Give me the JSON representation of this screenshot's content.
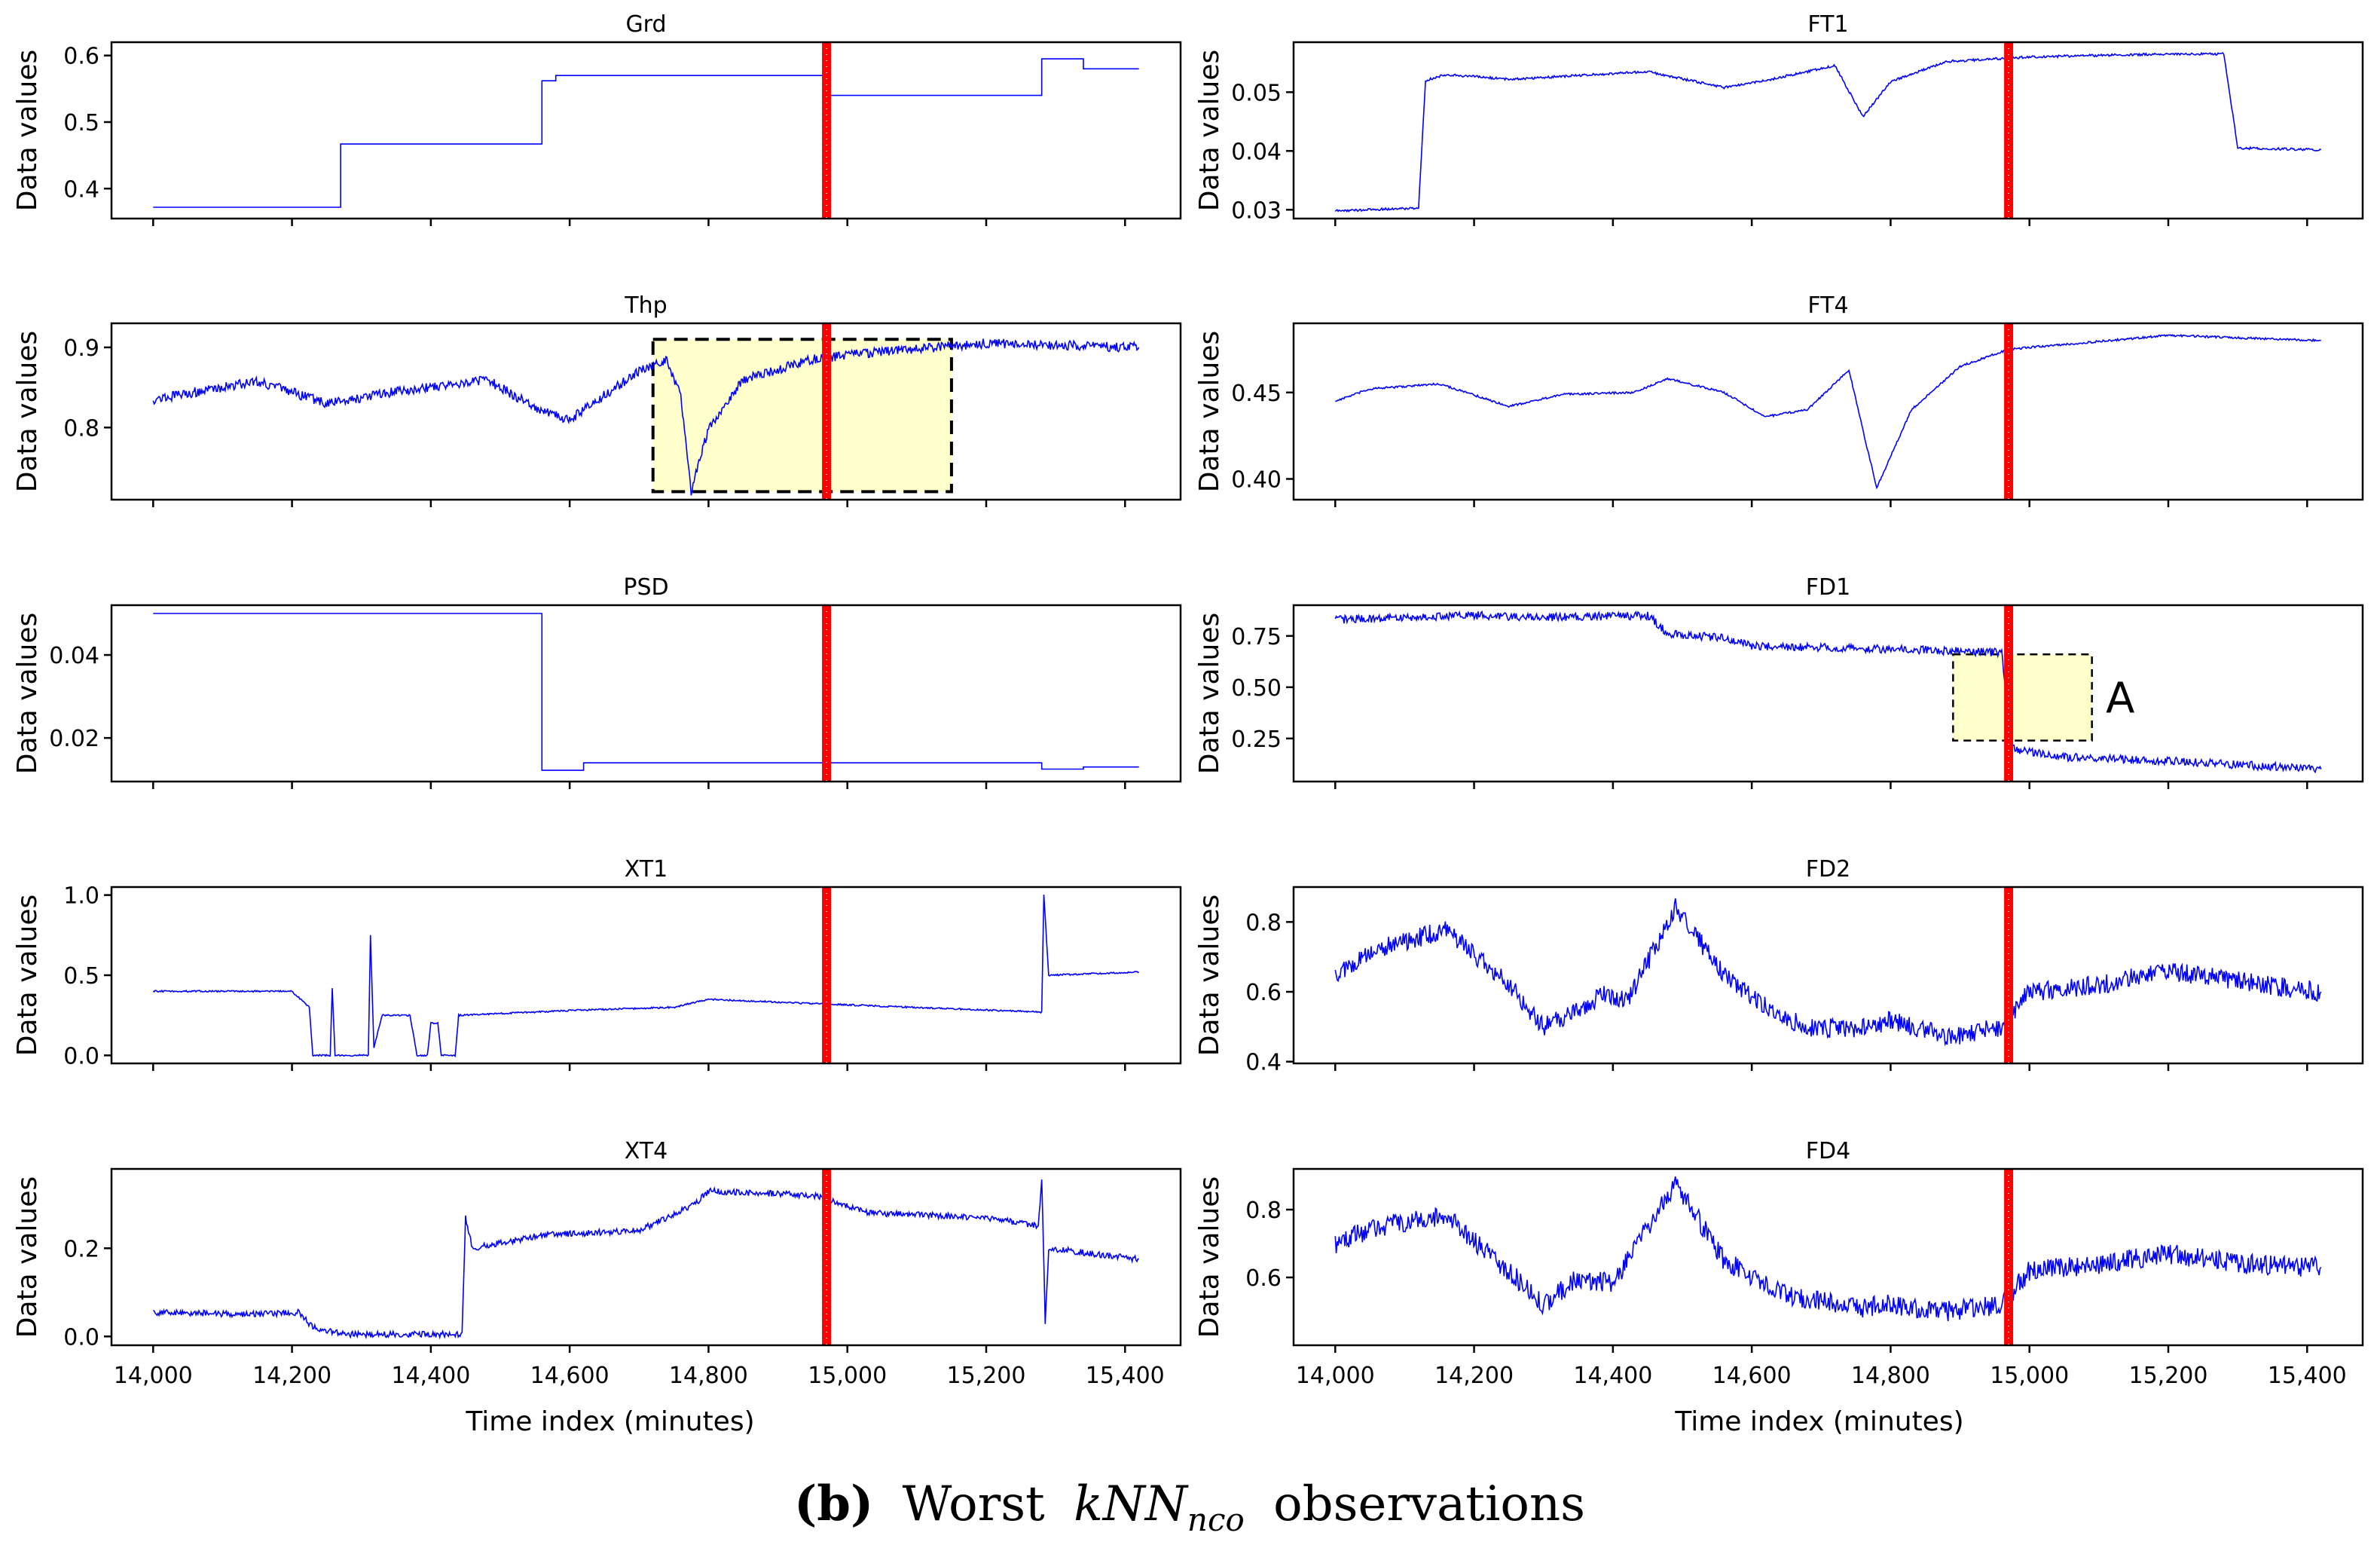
{
  "figure": {
    "x_axis_label": "Time index (minutes)",
    "y_axis_label": "Data values",
    "caption": {
      "letter": "(b)",
      "lead": "Worst",
      "term": "kNN",
      "subscript": "nco",
      "tail": "observations"
    },
    "marker_time": 14970,
    "colors": {
      "series": "#0000ff",
      "marker": "#ff0000",
      "highlight": "#ffffcc"
    }
  },
  "chart_data": [
    {
      "type": "line",
      "title": "Grd",
      "column": "left",
      "xlim": [
        13940,
        15480
      ],
      "ylim": [
        0.355,
        0.62
      ],
      "yticks": [
        0.4,
        0.5,
        0.6
      ],
      "ytick_labels": [
        "0.4",
        "0.5",
        "0.6"
      ],
      "xticks": [
        14000,
        14200,
        14400,
        14600,
        14800,
        15000,
        15200,
        15400
      ],
      "xtick_labels": [],
      "noise": 0.0,
      "points": [
        [
          14000,
          0.372
        ],
        [
          14270,
          0.372
        ],
        [
          14270,
          0.467
        ],
        [
          14560,
          0.467
        ],
        [
          14560,
          0.562
        ],
        [
          14580,
          0.562
        ],
        [
          14580,
          0.57
        ],
        [
          14970,
          0.57
        ],
        [
          14970,
          0.54
        ],
        [
          15280,
          0.54
        ],
        [
          15280,
          0.595
        ],
        [
          15340,
          0.595
        ],
        [
          15340,
          0.58
        ],
        [
          15420,
          0.58
        ]
      ]
    },
    {
      "type": "line",
      "title": "FT1",
      "column": "right",
      "xlim": [
        13940,
        15480
      ],
      "ylim": [
        0.0285,
        0.0585
      ],
      "yticks": [
        0.03,
        0.04,
        0.05
      ],
      "ytick_labels": [
        "0.03",
        "0.04",
        "0.05"
      ],
      "xticks": [
        14000,
        14200,
        14400,
        14600,
        14800,
        15000,
        15200,
        15400
      ],
      "xtick_labels": [],
      "noise": 0.0002,
      "points": [
        [
          14000,
          0.0298
        ],
        [
          14120,
          0.0303
        ],
        [
          14130,
          0.052
        ],
        [
          14160,
          0.053
        ],
        [
          14250,
          0.0522
        ],
        [
          14300,
          0.0525
        ],
        [
          14450,
          0.0535
        ],
        [
          14560,
          0.0508
        ],
        [
          14620,
          0.052
        ],
        [
          14720,
          0.0545
        ],
        [
          14760,
          0.0458
        ],
        [
          14800,
          0.0518
        ],
        [
          14880,
          0.0552
        ],
        [
          15000,
          0.056
        ],
        [
          15200,
          0.0565
        ],
        [
          15280,
          0.0565
        ],
        [
          15300,
          0.0405
        ],
        [
          15420,
          0.0402
        ]
      ]
    },
    {
      "type": "line",
      "title": "Thp",
      "column": "left",
      "xlim": [
        13940,
        15480
      ],
      "ylim": [
        0.71,
        0.93
      ],
      "yticks": [
        0.8,
        0.9
      ],
      "ytick_labels": [
        "0.8",
        "0.9"
      ],
      "xticks": [
        14000,
        14200,
        14400,
        14600,
        14800,
        15000,
        15200,
        15400
      ],
      "xtick_labels": [],
      "noise": 0.006,
      "points": [
        [
          14000,
          0.835
        ],
        [
          14150,
          0.858
        ],
        [
          14250,
          0.83
        ],
        [
          14350,
          0.845
        ],
        [
          14480,
          0.86
        ],
        [
          14560,
          0.82
        ],
        [
          14600,
          0.81
        ],
        [
          14700,
          0.87
        ],
        [
          14740,
          0.885
        ],
        [
          14760,
          0.84
        ],
        [
          14775,
          0.72
        ],
        [
          14800,
          0.8
        ],
        [
          14850,
          0.86
        ],
        [
          14950,
          0.885
        ],
        [
          15050,
          0.895
        ],
        [
          15200,
          0.905
        ],
        [
          15420,
          0.9
        ]
      ],
      "highlight": {
        "x": [
          14720,
          15150
        ],
        "y": [
          0.72,
          0.91
        ],
        "style": "thick"
      }
    },
    {
      "type": "line",
      "title": "FT4",
      "column": "right",
      "xlim": [
        13940,
        15480
      ],
      "ylim": [
        0.388,
        0.49
      ],
      "yticks": [
        0.4,
        0.45
      ],
      "ytick_labels": [
        "0.40",
        "0.45"
      ],
      "xticks": [
        14000,
        14200,
        14400,
        14600,
        14800,
        15000,
        15200,
        15400
      ],
      "xtick_labels": [],
      "noise": 0.0006,
      "points": [
        [
          14000,
          0.445
        ],
        [
          14050,
          0.452
        ],
        [
          14150,
          0.455
        ],
        [
          14250,
          0.442
        ],
        [
          14330,
          0.449
        ],
        [
          14430,
          0.45
        ],
        [
          14480,
          0.458
        ],
        [
          14560,
          0.45
        ],
        [
          14620,
          0.436
        ],
        [
          14680,
          0.44
        ],
        [
          14740,
          0.463
        ],
        [
          14765,
          0.42
        ],
        [
          14780,
          0.395
        ],
        [
          14830,
          0.44
        ],
        [
          14900,
          0.465
        ],
        [
          14970,
          0.475
        ],
        [
          15200,
          0.483
        ],
        [
          15420,
          0.48
        ]
      ]
    },
    {
      "type": "line",
      "title": "PSD",
      "column": "left",
      "xlim": [
        13940,
        15480
      ],
      "ylim": [
        0.0095,
        0.052
      ],
      "yticks": [
        0.02,
        0.04
      ],
      "ytick_labels": [
        "0.02",
        "0.04"
      ],
      "xticks": [
        14000,
        14200,
        14400,
        14600,
        14800,
        15000,
        15200,
        15400
      ],
      "xtick_labels": [],
      "noise": 0.0,
      "points": [
        [
          14000,
          0.05
        ],
        [
          14560,
          0.05
        ],
        [
          14560,
          0.0122
        ],
        [
          14620,
          0.0122
        ],
        [
          14620,
          0.014
        ],
        [
          14970,
          0.014
        ],
        [
          15280,
          0.014
        ],
        [
          15280,
          0.0125
        ],
        [
          15340,
          0.0125
        ],
        [
          15340,
          0.013
        ],
        [
          15420,
          0.013
        ]
      ]
    },
    {
      "type": "line",
      "title": "FD1",
      "column": "right",
      "xlim": [
        13940,
        15480
      ],
      "ylim": [
        0.04,
        0.9
      ],
      "yticks": [
        0.25,
        0.5,
        0.75
      ],
      "ytick_labels": [
        "0.25",
        "0.50",
        "0.75"
      ],
      "xticks": [
        14000,
        14200,
        14400,
        14600,
        14800,
        15000,
        15200,
        15400
      ],
      "xtick_labels": [],
      "noise": 0.02,
      "points": [
        [
          14000,
          0.83
        ],
        [
          14100,
          0.84
        ],
        [
          14200,
          0.85
        ],
        [
          14300,
          0.84
        ],
        [
          14450,
          0.85
        ],
        [
          14480,
          0.76
        ],
        [
          14560,
          0.74
        ],
        [
          14600,
          0.7
        ],
        [
          14750,
          0.69
        ],
        [
          14960,
          0.67
        ],
        [
          14975,
          0.2
        ],
        [
          15050,
          0.16
        ],
        [
          15200,
          0.14
        ],
        [
          15420,
          0.1
        ]
      ],
      "highlight": {
        "x": [
          14890,
          15090
        ],
        "y": [
          0.24,
          0.66
        ],
        "style": "thin"
      },
      "annotation": {
        "text": "A",
        "x": 15110,
        "y": 0.45
      }
    },
    {
      "type": "line",
      "title": "XT1",
      "column": "left",
      "xlim": [
        13940,
        15480
      ],
      "ylim": [
        -0.05,
        1.05
      ],
      "yticks": [
        0.0,
        0.5,
        1.0
      ],
      "ytick_labels": [
        "0.0",
        "0.5",
        "1.0"
      ],
      "xticks": [
        14000,
        14200,
        14400,
        14600,
        14800,
        15000,
        15200,
        15400
      ],
      "xtick_labels": [],
      "noise": 0.005,
      "points": [
        [
          14000,
          0.4
        ],
        [
          14200,
          0.4
        ],
        [
          14225,
          0.3
        ],
        [
          14230,
          0.0
        ],
        [
          14255,
          0.0
        ],
        [
          14258,
          0.42
        ],
        [
          14262,
          0.0
        ],
        [
          14310,
          0.0
        ],
        [
          14313,
          0.75
        ],
        [
          14318,
          0.05
        ],
        [
          14330,
          0.25
        ],
        [
          14370,
          0.25
        ],
        [
          14380,
          0.0
        ],
        [
          14395,
          0.0
        ],
        [
          14400,
          0.2
        ],
        [
          14410,
          0.2
        ],
        [
          14415,
          0.0
        ],
        [
          14435,
          0.0
        ],
        [
          14440,
          0.25
        ],
        [
          14600,
          0.28
        ],
        [
          14750,
          0.3
        ],
        [
          14800,
          0.35
        ],
        [
          14970,
          0.32
        ],
        [
          15280,
          0.27
        ],
        [
          15283,
          1.0
        ],
        [
          15290,
          0.5
        ],
        [
          15420,
          0.52
        ]
      ]
    },
    {
      "type": "line",
      "title": "FD2",
      "column": "right",
      "xlim": [
        13940,
        15480
      ],
      "ylim": [
        0.395,
        0.9
      ],
      "yticks": [
        0.4,
        0.6,
        0.8
      ],
      "ytick_labels": [
        "0.4",
        "0.6",
        "0.8"
      ],
      "xticks": [
        14000,
        14200,
        14400,
        14600,
        14800,
        15000,
        15200,
        15400
      ],
      "xtick_labels": [],
      "noise": 0.028,
      "points": [
        [
          14000,
          0.65
        ],
        [
          14060,
          0.72
        ],
        [
          14160,
          0.78
        ],
        [
          14250,
          0.62
        ],
        [
          14300,
          0.5
        ],
        [
          14350,
          0.55
        ],
        [
          14390,
          0.6
        ],
        [
          14420,
          0.57
        ],
        [
          14490,
          0.84
        ],
        [
          14560,
          0.65
        ],
        [
          14630,
          0.54
        ],
        [
          14680,
          0.5
        ],
        [
          14750,
          0.49
        ],
        [
          14800,
          0.52
        ],
        [
          14880,
          0.47
        ],
        [
          14960,
          0.5
        ],
        [
          15000,
          0.6
        ],
        [
          15100,
          0.62
        ],
        [
          15200,
          0.66
        ],
        [
          15300,
          0.63
        ],
        [
          15420,
          0.6
        ]
      ]
    },
    {
      "type": "line",
      "title": "XT4",
      "column": "left",
      "xlim": [
        13940,
        15480
      ],
      "ylim": [
        -0.02,
        0.38
      ],
      "yticks": [
        0.0,
        0.2
      ],
      "ytick_labels": [
        "0.0",
        "0.2"
      ],
      "xticks": [
        14000,
        14200,
        14400,
        14600,
        14800,
        15000,
        15200,
        15400
      ],
      "xtick_labels": [
        "14,000",
        "14,200",
        "14,400",
        "14,600",
        "14,800",
        "15,000",
        "15,200",
        "15,400"
      ],
      "noise": 0.007,
      "points": [
        [
          14000,
          0.055
        ],
        [
          14150,
          0.05
        ],
        [
          14210,
          0.055
        ],
        [
          14230,
          0.02
        ],
        [
          14280,
          0.005
        ],
        [
          14445,
          0.005
        ],
        [
          14450,
          0.27
        ],
        [
          14460,
          0.2
        ],
        [
          14560,
          0.23
        ],
        [
          14700,
          0.24
        ],
        [
          14780,
          0.3
        ],
        [
          14800,
          0.33
        ],
        [
          14950,
          0.32
        ],
        [
          15030,
          0.28
        ],
        [
          15200,
          0.27
        ],
        [
          15275,
          0.25
        ],
        [
          15280,
          0.36
        ],
        [
          15285,
          0.03
        ],
        [
          15290,
          0.2
        ],
        [
          15420,
          0.175
        ]
      ]
    },
    {
      "type": "line",
      "title": "FD4",
      "column": "right",
      "xlim": [
        13940,
        15480
      ],
      "ylim": [
        0.4,
        0.92
      ],
      "yticks": [
        0.6,
        0.8
      ],
      "ytick_labels": [
        "0.6",
        "0.8"
      ],
      "xticks": [
        14000,
        14200,
        14400,
        14600,
        14800,
        15000,
        15200,
        15400
      ],
      "xtick_labels": [
        "14,000",
        "14,200",
        "14,400",
        "14,600",
        "14,800",
        "15,000",
        "15,200",
        "15,400"
      ],
      "noise": 0.03,
      "points": [
        [
          14000,
          0.7
        ],
        [
          14060,
          0.75
        ],
        [
          14160,
          0.78
        ],
        [
          14260,
          0.6
        ],
        [
          14300,
          0.52
        ],
        [
          14350,
          0.6
        ],
        [
          14400,
          0.58
        ],
        [
          14490,
          0.88
        ],
        [
          14560,
          0.65
        ],
        [
          14650,
          0.55
        ],
        [
          14750,
          0.51
        ],
        [
          14800,
          0.52
        ],
        [
          14880,
          0.5
        ],
        [
          14960,
          0.52
        ],
        [
          15000,
          0.62
        ],
        [
          15100,
          0.64
        ],
        [
          15200,
          0.67
        ],
        [
          15300,
          0.64
        ],
        [
          15420,
          0.63
        ]
      ]
    }
  ]
}
